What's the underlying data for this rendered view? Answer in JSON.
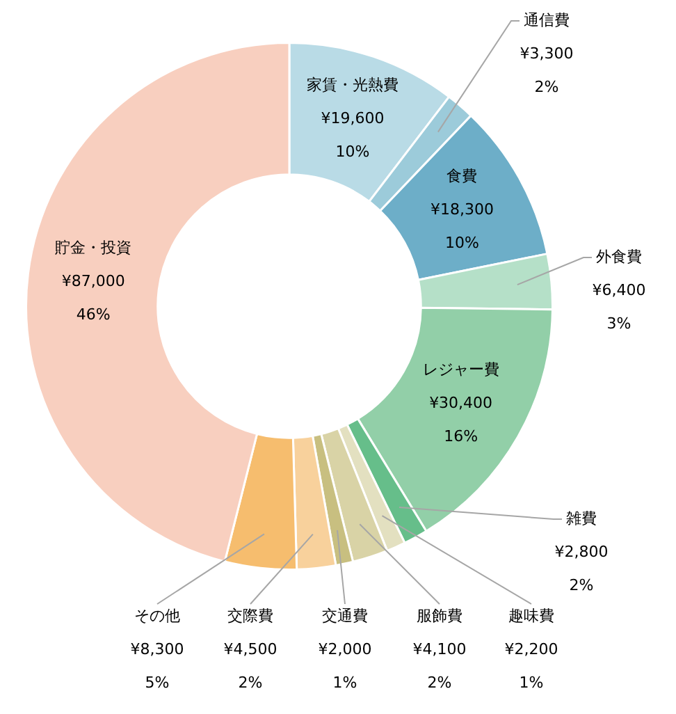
{
  "chart_data": {
    "type": "donut",
    "categories": [
      "家賃・光熱費",
      "通信費",
      "食費",
      "外食費",
      "レジャー費",
      "雑費",
      "趣味費",
      "服飾費",
      "交通費",
      "交際費",
      "その他",
      "貯金・投資"
    ],
    "values": [
      19600,
      3300,
      18300,
      6400,
      30400,
      2800,
      2200,
      4100,
      2000,
      4500,
      8300,
      87000
    ],
    "value_labels": [
      "¥19,600\n10%",
      "¥3,300\n2%",
      "¥18,300\n10%",
      "¥6,400\n3%",
      "¥30,400\n16%",
      "¥2,800\n2%",
      "¥2,200\n1%",
      "¥4,100\n2%",
      "¥2,000\n1%",
      "¥4,500\n2%",
      "¥8,300\n5%",
      "¥87,000\n46%"
    ],
    "colors": [
      "#b9dbe6",
      "#9ccbda",
      "#6daec8",
      "#b5e0c8",
      "#92cfa8",
      "#66be8a",
      "#e3e0c0",
      "#d9d3a6",
      "#c8bf80",
      "#f8d19c",
      "#f6bd6e",
      "#f8cfbf"
    ],
    "legend": false
  }
}
